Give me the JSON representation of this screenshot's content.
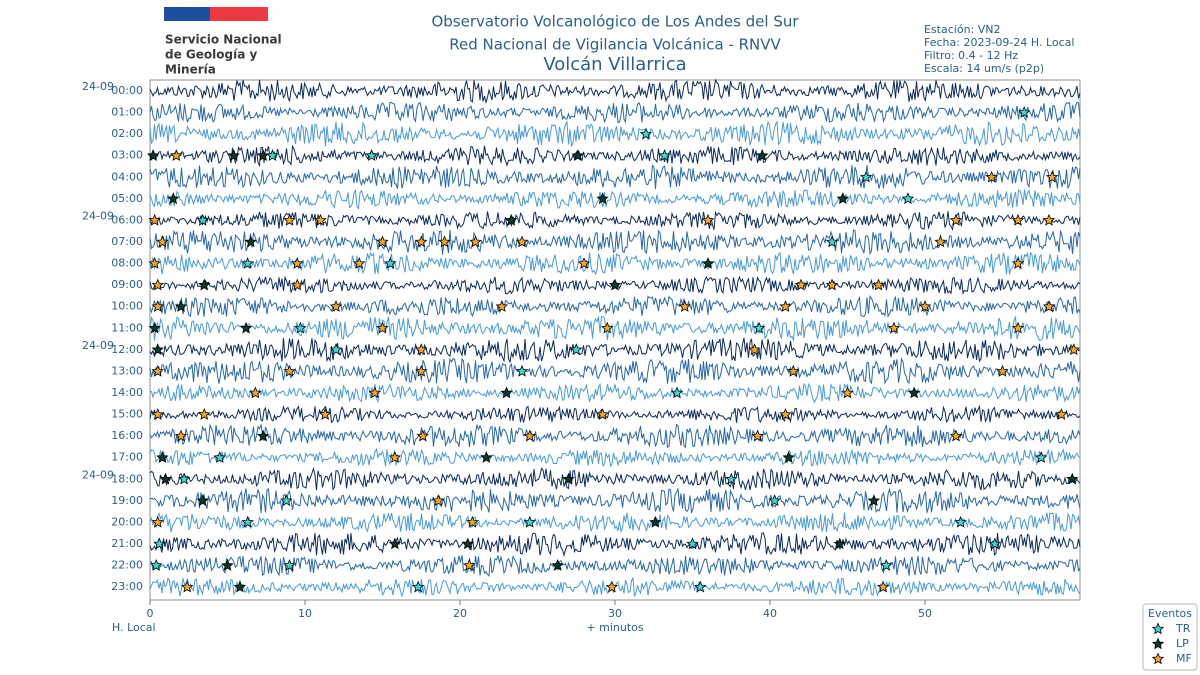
{
  "header": {
    "logo_lines": [
      "Servicio Nacional",
      "de Geología y",
      "Minería"
    ],
    "title_lines": [
      "Observatorio Volcanológico de Los Andes del Sur",
      "Red Nacional de Vigilancia Volcánica - RNVV"
    ],
    "volcano": "Volcán Villarrica",
    "info_lines": [
      "Estación: VN2",
      "Fecha: 2023-09-24 H. Local",
      "Filtro: 0.4 - 12 Hz",
      "Escala: 14 um/s (p2p)"
    ]
  },
  "chart_data": {
    "type": "helicorder",
    "rows": [
      "00:00",
      "01:00",
      "02:00",
      "03:00",
      "04:00",
      "05:00",
      "06:00",
      "07:00",
      "08:00",
      "09:00",
      "10:00",
      "11:00",
      "12:00",
      "13:00",
      "14:00",
      "15:00",
      "16:00",
      "17:00",
      "18:00",
      "19:00",
      "20:00",
      "21:00",
      "22:00",
      "23:00"
    ],
    "date_labels": [
      {
        "row": 0,
        "label": "24-09"
      },
      {
        "row": 6,
        "label": "24-09"
      },
      {
        "row": 12,
        "label": "24-09"
      },
      {
        "row": 18,
        "label": "24-09"
      }
    ],
    "trace_colors": [
      "#0d2b5a",
      "#2a67a6",
      "#4a9ad8"
    ],
    "xlim": [
      0,
      60
    ],
    "xticks": [
      0,
      10,
      20,
      30,
      40,
      50
    ],
    "xlabel": "+ minutos",
    "ylabel": "H. Local",
    "legend": {
      "title": "Eventos",
      "types": [
        {
          "name": "TR",
          "color": "#3fd6d0"
        },
        {
          "name": "LP",
          "color": "#0b3a26"
        },
        {
          "name": "MF",
          "color": "#f5a623"
        }
      ]
    },
    "events": [
      [
        1,
        56.4,
        "TR"
      ],
      [
        2,
        32,
        "TR"
      ],
      [
        3,
        0.2,
        "LP"
      ],
      [
        3,
        1.7,
        "MF"
      ],
      [
        3,
        5.4,
        "LP"
      ],
      [
        3,
        7.3,
        "LP"
      ],
      [
        3,
        7.9,
        "TR"
      ],
      [
        3,
        14.3,
        "TR"
      ],
      [
        3,
        27.6,
        "LP"
      ],
      [
        3,
        33.2,
        "TR"
      ],
      [
        3,
        39.5,
        "LP"
      ],
      [
        4,
        46.2,
        "TR"
      ],
      [
        4,
        54.3,
        "MF"
      ],
      [
        4,
        58.2,
        "MF"
      ],
      [
        5,
        1.5,
        "LP"
      ],
      [
        5,
        29.2,
        "LP"
      ],
      [
        5,
        44.7,
        "LP"
      ],
      [
        5,
        48.9,
        "TR"
      ],
      [
        6,
        0.3,
        "MF"
      ],
      [
        6,
        3.4,
        "TR"
      ],
      [
        6,
        9,
        "MF"
      ],
      [
        6,
        11,
        "MF"
      ],
      [
        6,
        23.3,
        "LP"
      ],
      [
        6,
        36,
        "MF"
      ],
      [
        6,
        52,
        "MF"
      ],
      [
        6,
        56,
        "MF"
      ],
      [
        6,
        58,
        "MF"
      ],
      [
        7,
        0.8,
        "MF"
      ],
      [
        7,
        6.5,
        "LP"
      ],
      [
        7,
        15,
        "MF"
      ],
      [
        7,
        17.5,
        "MF"
      ],
      [
        7,
        19,
        "MF"
      ],
      [
        7,
        21,
        "MF"
      ],
      [
        7,
        24,
        "MF"
      ],
      [
        7,
        44,
        "TR"
      ],
      [
        7,
        51,
        "MF"
      ],
      [
        8,
        0.3,
        "MF"
      ],
      [
        8,
        6.3,
        "TR"
      ],
      [
        8,
        9.5,
        "MF"
      ],
      [
        8,
        13.5,
        "MF"
      ],
      [
        8,
        15.5,
        "TR"
      ],
      [
        8,
        28,
        "MF"
      ],
      [
        8,
        36,
        "LP"
      ],
      [
        8,
        56,
        "MF"
      ],
      [
        9,
        0.5,
        "MF"
      ],
      [
        9,
        3.5,
        "LP"
      ],
      [
        9,
        9.5,
        "MF"
      ],
      [
        9,
        30,
        "LP"
      ],
      [
        9,
        42,
        "MF"
      ],
      [
        9,
        44,
        "MF"
      ],
      [
        9,
        47,
        "MF"
      ],
      [
        10,
        0.5,
        "MF"
      ],
      [
        10,
        2,
        "LP"
      ],
      [
        10,
        12,
        "MF"
      ],
      [
        10,
        22.7,
        "MF"
      ],
      [
        10,
        34.5,
        "MF"
      ],
      [
        10,
        41,
        "MF"
      ],
      [
        10,
        50,
        "MF"
      ],
      [
        10,
        58,
        "MF"
      ],
      [
        11,
        0.3,
        "LP"
      ],
      [
        11,
        6.2,
        "LP"
      ],
      [
        11,
        9.7,
        "TR"
      ],
      [
        11,
        15,
        "MF"
      ],
      [
        11,
        29.5,
        "MF"
      ],
      [
        11,
        39.3,
        "TR"
      ],
      [
        11,
        48,
        "MF"
      ],
      [
        11,
        56,
        "MF"
      ],
      [
        12,
        0.5,
        "LP"
      ],
      [
        12,
        12,
        "TR"
      ],
      [
        12,
        17.5,
        "MF"
      ],
      [
        12,
        27.5,
        "TR"
      ],
      [
        12,
        39,
        "MF"
      ],
      [
        12,
        59.6,
        "MF"
      ],
      [
        13,
        0.5,
        "MF"
      ],
      [
        13,
        9,
        "MF"
      ],
      [
        13,
        17.5,
        "MF"
      ],
      [
        13,
        24,
        "TR"
      ],
      [
        13,
        41.5,
        "MF"
      ],
      [
        13,
        55,
        "MF"
      ],
      [
        14,
        6.8,
        "MF"
      ],
      [
        14,
        14.5,
        "MF"
      ],
      [
        14,
        23,
        "LP"
      ],
      [
        14,
        34,
        "TR"
      ],
      [
        14,
        45,
        "MF"
      ],
      [
        14,
        49.3,
        "LP"
      ],
      [
        15,
        0.5,
        "MF"
      ],
      [
        15,
        3.5,
        "MF"
      ],
      [
        15,
        11.3,
        "MF"
      ],
      [
        15,
        29.2,
        "MF"
      ],
      [
        15,
        41,
        "MF"
      ],
      [
        15,
        58.8,
        "MF"
      ],
      [
        16,
        2,
        "MF"
      ],
      [
        16,
        7.3,
        "LP"
      ],
      [
        16,
        17.6,
        "MF"
      ],
      [
        16,
        24.5,
        "MF"
      ],
      [
        16,
        39.2,
        "MF"
      ],
      [
        16,
        52,
        "MF"
      ],
      [
        17,
        0.8,
        "LP"
      ],
      [
        17,
        4.5,
        "TR"
      ],
      [
        17,
        15.8,
        "MF"
      ],
      [
        17,
        21.7,
        "LP"
      ],
      [
        17,
        41.2,
        "LP"
      ],
      [
        17,
        57.5,
        "TR"
      ],
      [
        18,
        1,
        "LP"
      ],
      [
        18,
        2.2,
        "TR"
      ],
      [
        18,
        27,
        "LP"
      ],
      [
        18,
        37.5,
        "TR"
      ],
      [
        18,
        59.5,
        "LP"
      ],
      [
        19,
        3.4,
        "LP"
      ],
      [
        19,
        8.8,
        "TR"
      ],
      [
        19,
        18.6,
        "MF"
      ],
      [
        19,
        40.3,
        "TR"
      ],
      [
        19,
        46.7,
        "LP"
      ],
      [
        20,
        0.5,
        "MF"
      ],
      [
        20,
        6.3,
        "TR"
      ],
      [
        20,
        20.8,
        "MF"
      ],
      [
        20,
        24.5,
        "TR"
      ],
      [
        20,
        32.6,
        "LP"
      ],
      [
        20,
        52.3,
        "TR"
      ],
      [
        21,
        0.6,
        "TR"
      ],
      [
        21,
        15.8,
        "LP"
      ],
      [
        21,
        20.5,
        "LP"
      ],
      [
        21,
        35,
        "TR"
      ],
      [
        21,
        44.5,
        "LP"
      ],
      [
        21,
        54.5,
        "TR"
      ],
      [
        22,
        0.4,
        "TR"
      ],
      [
        22,
        5,
        "LP"
      ],
      [
        22,
        9,
        "TR"
      ],
      [
        22,
        20.6,
        "MF"
      ],
      [
        22,
        26.3,
        "LP"
      ],
      [
        22,
        47.5,
        "TR"
      ],
      [
        23,
        2.4,
        "MF"
      ],
      [
        23,
        5.8,
        "LP"
      ],
      [
        23,
        17.3,
        "TR"
      ],
      [
        23,
        29.8,
        "MF"
      ],
      [
        23,
        35.5,
        "TR"
      ],
      [
        23,
        47.3,
        "MF"
      ]
    ]
  }
}
